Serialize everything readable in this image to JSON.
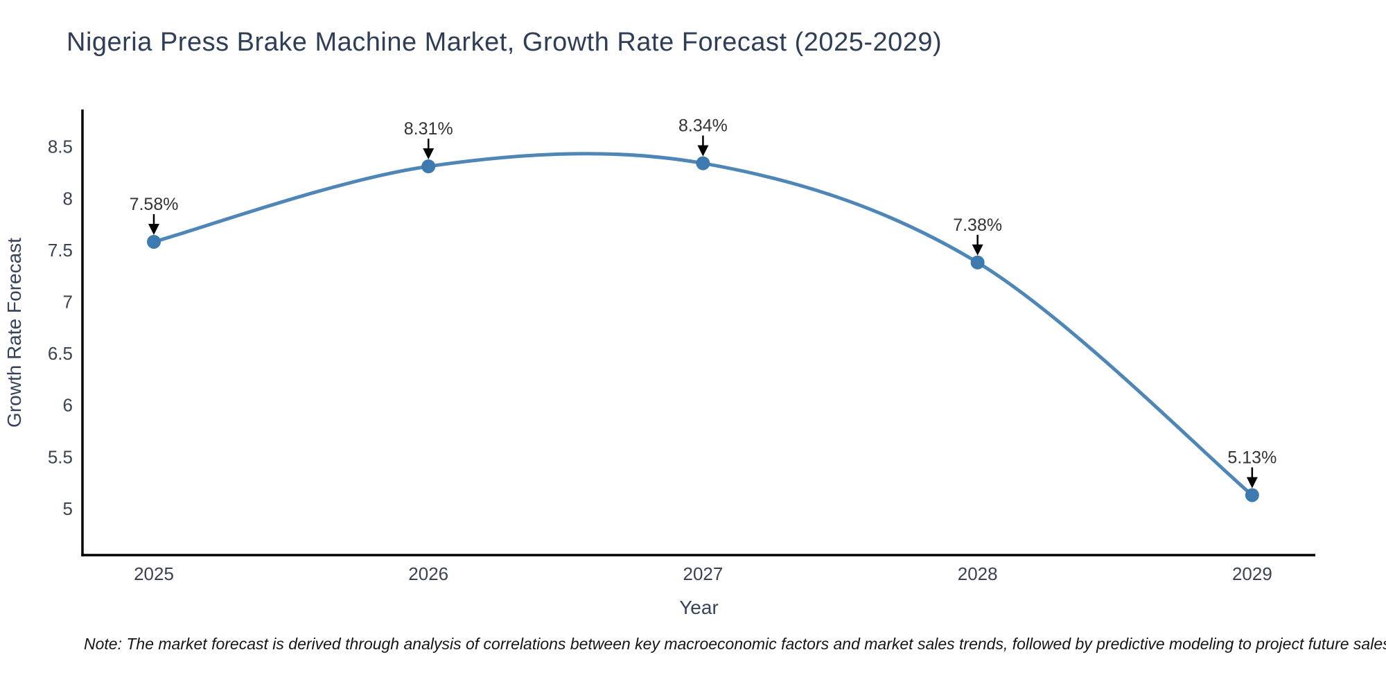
{
  "title": "Nigeria Press Brake Machine Market, Growth Rate Forecast (2025-2029)",
  "note": "Note: The market forecast is derived through analysis of correlations between key macroeconomic factors and market sales trends, followed by predictive modeling to project future sales",
  "colors": {
    "line": "#4e86b7",
    "marker": "#3c7ab0",
    "axis": "#000000",
    "annotation": "#000000",
    "title_text": "#2e3e56",
    "tick_text": "#3b4252",
    "label_text": "#333333",
    "note_text": "#151515",
    "background": "#ffffff"
  },
  "chart_data": {
    "type": "line",
    "line_shape": "spline",
    "title": "Nigeria Press Brake Machine Market, Growth Rate Forecast (2025-2029)",
    "xlabel": "Year",
    "ylabel": "Growth Rate Forecast",
    "x": [
      2025,
      2026,
      2027,
      2028,
      2029
    ],
    "values": [
      7.58,
      8.31,
      8.34,
      7.38,
      5.13
    ],
    "point_labels": [
      "7.58%",
      "8.31%",
      "8.34%",
      "7.38%",
      "5.13%"
    ],
    "xticks": [
      "2025",
      "2026",
      "2027",
      "2028",
      "2029"
    ],
    "yticks": [
      5,
      5.5,
      6,
      6.5,
      7,
      7.5,
      8,
      8.5
    ],
    "xlim": [
      2024.74,
      2029.23
    ],
    "ylim": [
      4.55,
      8.86
    ],
    "grid": false,
    "legend": false,
    "annotations": "down-arrow-to-each-point"
  }
}
